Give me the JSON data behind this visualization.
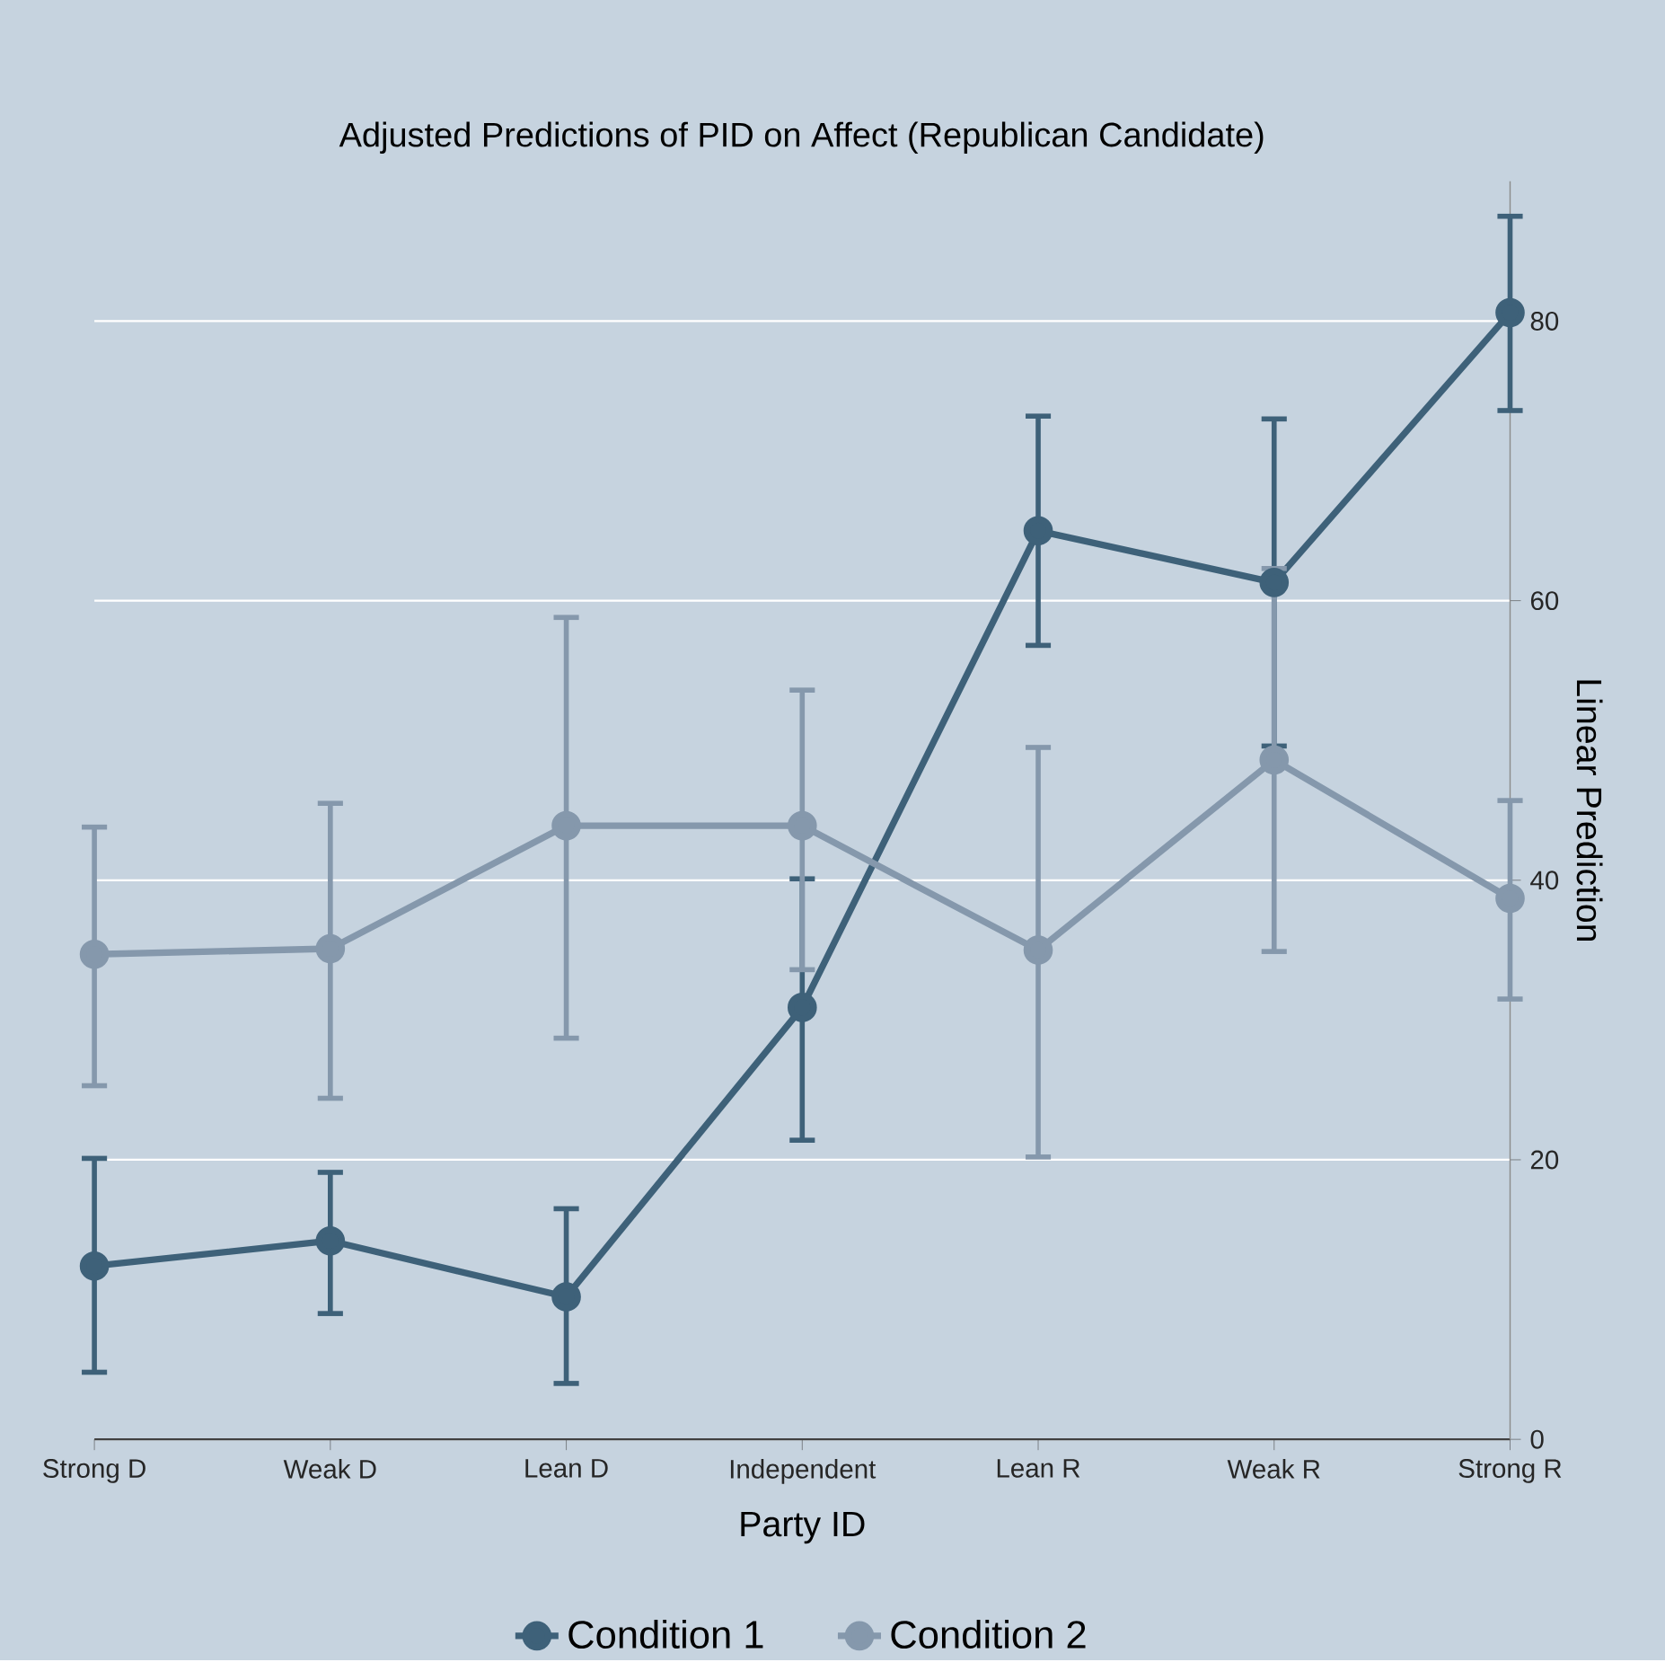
{
  "chart_data": {
    "type": "line",
    "title": "Adjusted Predictions of PID on Affect (Republican Candidate)",
    "xlabel": "Party ID",
    "ylabel": "Linear Prediction",
    "categories": [
      "Strong D",
      "Weak D",
      "Lean D",
      "Independent",
      "Lean R",
      "Weak R",
      "Strong R"
    ],
    "series": [
      {
        "name": "Condition 1",
        "color": "#3e6179",
        "values": [
          12.4,
          14.2,
          10.2,
          30.9,
          65.0,
          61.3,
          80.6
        ],
        "errors": [
          [
            4.8,
            20.1
          ],
          [
            9.0,
            19.1
          ],
          [
            4.0,
            16.5
          ],
          [
            21.4,
            40.1
          ],
          [
            56.8,
            73.2
          ],
          11.7,
          [
            73.6,
            87.5
          ]
        ]
      },
      {
        "name": "Condition 2",
        "color": "#8598ac",
        "values": [
          34.7,
          35.1,
          43.9,
          43.9,
          35.0,
          48.6,
          38.7
        ],
        "errors": [
          [
            25.3,
            43.8
          ],
          [
            24.4,
            45.5
          ],
          [
            28.7,
            58.8
          ],
          [
            33.6,
            53.6
          ],
          [
            20.2,
            49.5
          ],
          13.7,
          [
            31.5,
            45.7
          ]
        ]
      }
    ],
    "ylim": [
      0,
      90
    ],
    "yticks": [
      0,
      20,
      40,
      60,
      80
    ],
    "grid": "y",
    "legend": "bottom",
    "marker": "circle",
    "line_style": "solid"
  }
}
